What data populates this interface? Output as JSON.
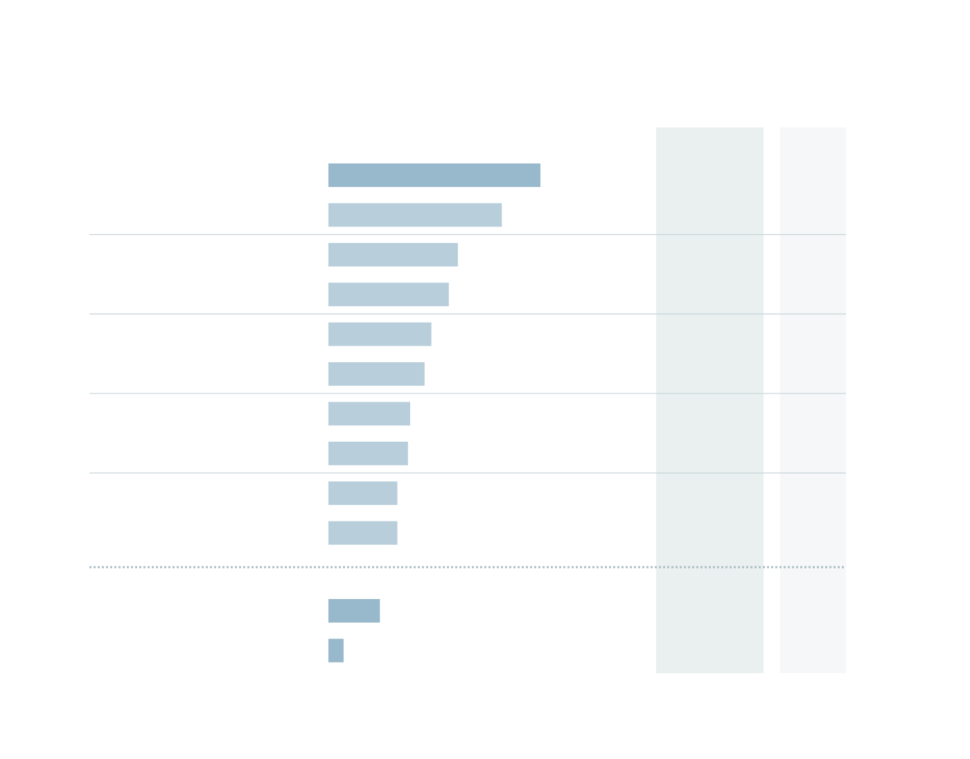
{
  "chart_data": {
    "type": "bar",
    "orientation": "horizontal",
    "title": "",
    "xlabel": "",
    "ylabel": "",
    "xlim": [
      0,
      100
    ],
    "grid": false,
    "legend": "none",
    "groups": [
      {
        "values": [
          28,
          22.9
        ],
        "highlight": [
          true,
          false
        ]
      },
      {
        "values": [
          17.1,
          15.9
        ]
      },
      {
        "values": [
          13.6,
          12.7
        ]
      },
      {
        "values": [
          10.8,
          10.5
        ]
      },
      {
        "values": [
          9.1,
          9.1
        ]
      }
    ],
    "separated_group": {
      "values": [
        6.8,
        2
      ]
    },
    "colors": {
      "highlight_bar": "#98b8cb",
      "bar": "#b8cedb",
      "separated_bar": "#98b8cb",
      "divider": "#c5d3d6",
      "dotted_divider": "#aebfc6",
      "column_panel_1": "#eaf0f0",
      "column_panel_2": "#f5f7f8"
    }
  }
}
